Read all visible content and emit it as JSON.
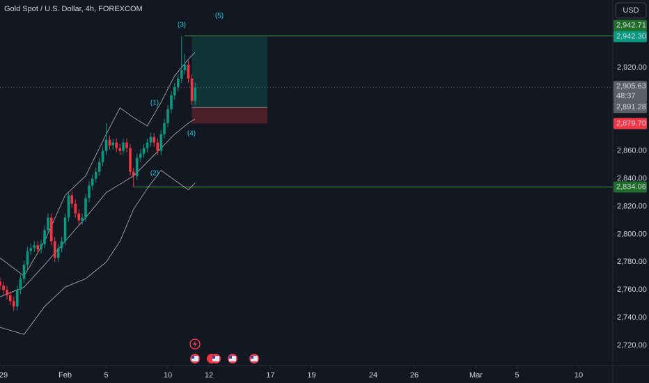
{
  "chart_data": {
    "type": "candlestick",
    "title": "Gold Spot / U.S. Dollar, 4h, FOREXCOM",
    "currency": "USD",
    "up_color": "#089981",
    "down_color": "#f23645",
    "grid": false,
    "xlim": [
      -0.17,
      29.66
    ],
    "ylim": [
      2705.5,
      2968.6
    ],
    "xticks": [
      {
        "value": 0,
        "label": "29"
      },
      {
        "value": 3,
        "label": "Feb"
      },
      {
        "value": 5,
        "label": "5"
      },
      {
        "value": 8,
        "label": "10"
      },
      {
        "value": 10,
        "label": "12"
      },
      {
        "value": 13,
        "label": "17"
      },
      {
        "value": 15,
        "label": "19"
      },
      {
        "value": 18,
        "label": "24"
      },
      {
        "value": 20,
        "label": "26"
      },
      {
        "value": 23,
        "label": "Mar"
      },
      {
        "value": 25,
        "label": "5"
      },
      {
        "value": 28,
        "label": "10"
      }
    ],
    "yticks": [
      {
        "value": 2720,
        "label": "2,720.00"
      },
      {
        "value": 2740,
        "label": "2,740.00"
      },
      {
        "value": 2760,
        "label": "2,760.00"
      },
      {
        "value": 2780,
        "label": "2,780.00"
      },
      {
        "value": 2800,
        "label": "2,800.00"
      },
      {
        "value": 2820,
        "label": "2,820.00"
      },
      {
        "value": 2840,
        "label": "2,840.00"
      },
      {
        "value": 2860,
        "label": "2,860.00"
      },
      {
        "value": 2920,
        "label": "2,920.00"
      }
    ],
    "x": [
      -0.17,
      0,
      0.17,
      0.33,
      0.5,
      0.67,
      0.83,
      1,
      1.17,
      1.33,
      1.5,
      1.67,
      1.83,
      2,
      2.17,
      2.33,
      2.5,
      2.67,
      2.83,
      3,
      3.17,
      3.33,
      3.5,
      3.67,
      3.83,
      4,
      4.17,
      4.33,
      4.5,
      4.67,
      4.83,
      5,
      5.17,
      5.33,
      5.5,
      5.67,
      5.83,
      6,
      6.17,
      6.33,
      6.5,
      6.67,
      6.83,
      7,
      7.17,
      7.33,
      7.5,
      7.67,
      7.83,
      8,
      8.17,
      8.33,
      8.5,
      8.67,
      8.83,
      9,
      9.17,
      9.33
    ],
    "open": [
      2766,
      2763,
      2760,
      2756,
      2752,
      2748,
      2760,
      2768,
      2778,
      2788,
      2790,
      2792,
      2789,
      2793,
      2803,
      2812,
      2795,
      2783,
      2790,
      2795,
      2812,
      2828,
      2822,
      2815,
      2810,
      2812,
      2826,
      2835,
      2840,
      2845,
      2852,
      2860,
      2868,
      2864,
      2866,
      2862,
      2860,
      2866,
      2862,
      2845,
      2842,
      2855,
      2858,
      2862,
      2866,
      2870,
      2866,
      2860,
      2872,
      2880,
      2890,
      2900,
      2906,
      2912,
      2918,
      2922,
      2912,
      2896
    ],
    "high": [
      2769,
      2766,
      2763,
      2759,
      2755,
      2763,
      2771,
      2781,
      2791,
      2793,
      2795,
      2795,
      2796,
      2806,
      2815,
      2815,
      2798,
      2793,
      2798,
      2815,
      2831,
      2831,
      2825,
      2818,
      2815,
      2829,
      2838,
      2843,
      2848,
      2855,
      2863,
      2880,
      2871,
      2869,
      2869,
      2865,
      2869,
      2869,
      2865,
      2848,
      2858,
      2861,
      2865,
      2869,
      2873,
      2873,
      2869,
      2875,
      2883,
      2893,
      2903,
      2909,
      2915,
      2942.71,
      2930,
      2925,
      2915,
      2909
    ],
    "low": [
      2760,
      2757,
      2753,
      2749,
      2745,
      2745,
      2757,
      2765,
      2775,
      2785,
      2787,
      2786,
      2786,
      2790,
      2800,
      2792,
      2780,
      2780,
      2787,
      2792,
      2809,
      2819,
      2812,
      2807,
      2807,
      2809,
      2823,
      2832,
      2837,
      2842,
      2849,
      2857,
      2861,
      2861,
      2859,
      2857,
      2857,
      2859,
      2842,
      2834,
      2839,
      2852,
      2855,
      2859,
      2863,
      2863,
      2857,
      2857,
      2869,
      2877,
      2887,
      2897,
      2903,
      2909,
      2915,
      2909,
      2893,
      2893
    ],
    "close": [
      2763,
      2760,
      2756,
      2752,
      2748,
      2760,
      2768,
      2778,
      2788,
      2790,
      2792,
      2789,
      2793,
      2803,
      2812,
      2795,
      2783,
      2790,
      2795,
      2812,
      2828,
      2822,
      2815,
      2810,
      2812,
      2826,
      2835,
      2840,
      2845,
      2852,
      2860,
      2868,
      2864,
      2866,
      2862,
      2860,
      2866,
      2862,
      2845,
      2842,
      2855,
      2858,
      2862,
      2866,
      2870,
      2866,
      2860,
      2872,
      2880,
      2890,
      2900,
      2906,
      2912,
      2918,
      2922,
      2912,
      2896,
      2905.63
    ],
    "bands": {
      "color": "#d1d4dc",
      "x": [
        -0.17,
        1,
        2,
        3,
        4,
        5,
        5.67,
        6.33,
        7,
        7.67,
        8.33,
        9,
        9.33
      ],
      "upper": [
        2783,
        2770,
        2795,
        2828,
        2842,
        2872,
        2891,
        2884,
        2878,
        2895,
        2914,
        2926,
        2931
      ],
      "middle": [
        2755,
        2762,
        2778,
        2795,
        2812,
        2830,
        2836,
        2842,
        2852,
        2862,
        2872,
        2880,
        2883
      ],
      "lower": [
        2733,
        2728,
        2748,
        2762,
        2768,
        2780,
        2795,
        2818,
        2833,
        2846,
        2839,
        2832,
        2837
      ]
    },
    "position": {
      "start": 9.17,
      "end": 12.85,
      "target": 2942.3,
      "entry": 2891.28,
      "stop": 2879.7
    },
    "levels": [
      {
        "value": 2942.71,
        "start": 8.8,
        "color": "#43a047"
      },
      {
        "value": 2834.06,
        "start": 6.33,
        "color": "#43a047"
      }
    ],
    "last_price": 2905.63,
    "countdown": "48:37",
    "price_tags": [
      {
        "value": 2942.71,
        "label": "2,942.71",
        "color": "#1f6f2b"
      },
      {
        "value": 2942.3,
        "label": "2,942.30",
        "color": "#089981"
      },
      {
        "value": 2905.63,
        "label": "2,905.63",
        "color": "#5d606b"
      },
      {
        "value": 2891.28,
        "label": "2,891.28",
        "color": "#5d606b"
      },
      {
        "value": 2879.7,
        "label": "2,879.70",
        "color": "#f23645"
      },
      {
        "value": 2834.06,
        "label": "2,834.06",
        "color": "#1f6f2b"
      }
    ],
    "annotations": [
      "(1)",
      "(2)",
      "(3)",
      "(4)",
      "(5)"
    ]
  }
}
